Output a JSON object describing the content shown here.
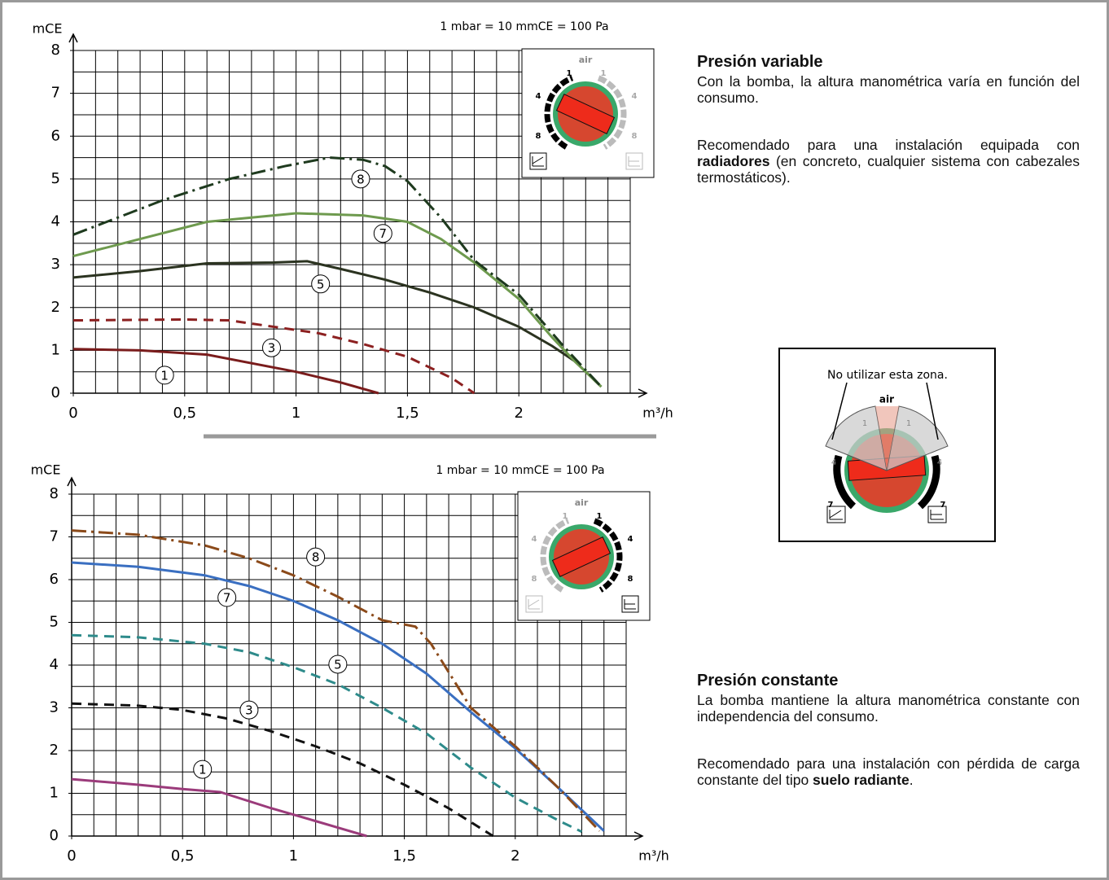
{
  "chart_data": [
    {
      "type": "line",
      "y_label": "mCE",
      "x_label": "m³/h",
      "note": "1 mbar = 10 mmCE = 100 Pa",
      "xlim": [
        0,
        2.5
      ],
      "ylim": [
        0,
        8
      ],
      "xticks": [
        0,
        {
          "value": 0.5,
          "label": "0,5"
        },
        1,
        {
          "value": 1.5,
          "label": "1,5"
        },
        2
      ],
      "yticks": [
        0,
        1,
        2,
        3,
        4,
        5,
        6,
        7,
        8
      ],
      "xgrid": [
        0,
        0.1,
        0.2,
        0.3,
        0.4,
        0.5,
        0.6,
        0.7,
        0.8,
        0.9,
        1,
        1.1,
        1.2,
        1.3,
        1.4,
        1.5,
        1.6,
        1.7,
        1.8,
        1.9,
        2,
        2.1,
        2.2,
        2.3,
        2.4,
        2.5
      ],
      "ygrid": [
        0,
        0.5,
        1,
        1.5,
        2,
        2.5,
        3,
        3.5,
        4,
        4.5,
        5,
        5.5,
        6,
        6.5,
        7,
        7.5,
        8
      ],
      "dial_labels": [
        "1",
        "4",
        "8",
        "1",
        "4",
        "8"
      ],
      "dial_icon": "air",
      "dial_active": "left",
      "series": [
        {
          "name": "1",
          "color": "#7a1c1c",
          "style": "solid",
          "label_x": 0.41,
          "label_y": 0.42,
          "x": [
            0,
            0.3,
            0.6,
            0.9,
            1.0,
            1.2,
            1.37
          ],
          "values": [
            1.03,
            1.0,
            0.9,
            0.6,
            0.5,
            0.25,
            0
          ]
        },
        {
          "name": "3",
          "color": "#8c2020",
          "style": "dashed",
          "label_x": 0.89,
          "label_y": 1.06,
          "x": [
            0,
            0.5,
            0.7,
            0.9,
            1.1,
            1.3,
            1.5,
            1.7,
            1.8
          ],
          "values": [
            1.7,
            1.72,
            1.7,
            1.55,
            1.4,
            1.15,
            0.85,
            0.35,
            0
          ]
        },
        {
          "name": "5",
          "color": "#2b3320",
          "style": "solid",
          "label_x": 1.11,
          "label_y": 2.55,
          "x": [
            0,
            0.3,
            0.6,
            0.9,
            1.05,
            1.2,
            1.4,
            1.6,
            1.8,
            2.0,
            2.15,
            2.25,
            2.37
          ],
          "values": [
            2.7,
            2.85,
            3.03,
            3.05,
            3.08,
            2.9,
            2.65,
            2.35,
            2.0,
            1.55,
            1.1,
            0.75,
            0.15
          ]
        },
        {
          "name": "7",
          "color": "#6e9a4e",
          "style": "solid",
          "label_x": 1.39,
          "label_y": 3.73,
          "x": [
            0,
            0.3,
            0.6,
            0.9,
            1.0,
            1.3,
            1.5,
            1.65,
            1.8,
            2.0,
            2.15,
            2.25,
            2.37
          ],
          "values": [
            3.2,
            3.6,
            4.0,
            4.15,
            4.2,
            4.15,
            4.0,
            3.6,
            3.05,
            2.2,
            1.3,
            0.75,
            0.15
          ]
        },
        {
          "name": "8",
          "color": "#1e3a1e",
          "style": "dashdot",
          "label_x": 1.29,
          "label_y": 5.0,
          "x": [
            0,
            0.4,
            0.7,
            0.95,
            1.15,
            1.3,
            1.4,
            1.5,
            1.65,
            1.8,
            2.0,
            2.2,
            2.37
          ],
          "values": [
            3.7,
            4.5,
            5.0,
            5.3,
            5.5,
            5.45,
            5.3,
            4.95,
            4.1,
            3.1,
            2.3,
            1.1,
            0.15
          ]
        }
      ]
    },
    {
      "type": "line",
      "y_label": "mCE",
      "x_label": "m³/h",
      "note": "1 mbar = 10 mmCE = 100 Pa",
      "xlim": [
        0,
        2.5
      ],
      "ylim": [
        0,
        8
      ],
      "xticks": [
        0,
        {
          "value": 0.5,
          "label": "0,5"
        },
        1,
        {
          "value": 1.5,
          "label": "1,5"
        },
        2
      ],
      "yticks": [
        0,
        1,
        2,
        3,
        4,
        5,
        6,
        7,
        8
      ],
      "xgrid": [
        0,
        0.1,
        0.2,
        0.3,
        0.4,
        0.5,
        0.6,
        0.7,
        0.8,
        0.9,
        1,
        1.1,
        1.2,
        1.3,
        1.4,
        1.5,
        1.6,
        1.7,
        1.8,
        1.9,
        2,
        2.1,
        2.2,
        2.3,
        2.4,
        2.5
      ],
      "ygrid": [
        0,
        0.5,
        1,
        1.5,
        2,
        2.5,
        3,
        3.5,
        4,
        4.5,
        5,
        5.5,
        6,
        6.5,
        7,
        7.5,
        8
      ],
      "dial_labels": [
        "1",
        "4",
        "8",
        "1",
        "4",
        "8"
      ],
      "dial_icon": "air",
      "dial_active": "right",
      "series": [
        {
          "name": "1",
          "color": "#9b3b7b",
          "style": "solid",
          "label_x": 0.59,
          "label_y": 1.56,
          "x": [
            0,
            0.3,
            0.5,
            0.67,
            0.9,
            1.1,
            1.33
          ],
          "values": [
            1.33,
            1.2,
            1.1,
            1.03,
            0.65,
            0.35,
            0
          ]
        },
        {
          "name": "3",
          "color": "#111111",
          "style": "dashed",
          "label_x": 0.8,
          "label_y": 2.95,
          "x": [
            0,
            0.3,
            0.5,
            0.7,
            0.9,
            1.1,
            1.3,
            1.5,
            1.7,
            1.9
          ],
          "values": [
            3.1,
            3.05,
            2.95,
            2.75,
            2.45,
            2.1,
            1.7,
            1.2,
            0.65,
            0
          ]
        },
        {
          "name": "5",
          "color": "#2e8b8b",
          "style": "dashed",
          "label_x": 1.2,
          "label_y": 4.02,
          "x": [
            0,
            0.3,
            0.6,
            0.8,
            1.0,
            1.2,
            1.4,
            1.6,
            1.8,
            2.0,
            2.2,
            2.3
          ],
          "values": [
            4.7,
            4.65,
            4.5,
            4.3,
            3.95,
            3.55,
            3.0,
            2.4,
            1.6,
            0.9,
            0.35,
            0.1
          ]
        },
        {
          "name": "7",
          "color": "#3a6fc1",
          "style": "solid",
          "label_x": 0.7,
          "label_y": 5.58,
          "x": [
            0,
            0.3,
            0.6,
            0.8,
            1.0,
            1.2,
            1.4,
            1.6,
            1.8,
            2.0,
            2.2,
            2.4
          ],
          "values": [
            6.4,
            6.3,
            6.1,
            5.85,
            5.5,
            5.05,
            4.5,
            3.8,
            2.9,
            2.05,
            1.1,
            0.12
          ]
        },
        {
          "name": "8",
          "color": "#8b4a1a",
          "style": "dashdot",
          "label_x": 1.1,
          "label_y": 6.53,
          "x": [
            0,
            0.3,
            0.6,
            0.8,
            1.0,
            1.2,
            1.4,
            1.55,
            1.62,
            1.8,
            2.0,
            2.2,
            2.38
          ],
          "values": [
            7.15,
            7.05,
            6.8,
            6.5,
            6.1,
            5.6,
            5.05,
            4.9,
            4.5,
            3.0,
            2.1,
            1.1,
            0.12
          ]
        }
      ]
    }
  ],
  "variable": {
    "title": "Presión variable",
    "text": "Con la bomba, la altura manométrica varía en función del consumo.",
    "recommend": [
      "Recomendado para una instalación equipada con ",
      "radiadores",
      " (en concreto, cualquier sistema con cabezales termostáticos)."
    ]
  },
  "warning": {
    "label": "No utilizar esta zona.",
    "icon": "air",
    "marks": [
      "4",
      "1",
      "1",
      "4",
      "7",
      "7"
    ]
  },
  "constant": {
    "title": "Presión constante",
    "text": "La bomba mantiene la altura manométrica constante con independencia del consumo.",
    "recommend": [
      "Recomendado para una instalación con pérdida de carga constante del tipo ",
      "suelo radiante",
      "."
    ]
  }
}
